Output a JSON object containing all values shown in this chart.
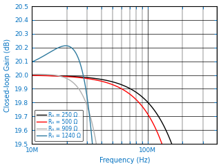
{
  "title": "",
  "xlabel": "Frequency (Hz)",
  "ylabel": "Closed-loop Gain (dB)",
  "xlim": [
    10000000.0,
    400000000.0
  ],
  "ylim": [
    19.5,
    20.5
  ],
  "yticks": [
    19.5,
    19.6,
    19.7,
    19.8,
    19.9,
    20.0,
    20.1,
    20.2,
    20.3,
    20.4,
    20.5
  ],
  "series": [
    {
      "label": "R_F = 250 Ω",
      "color": "#000000",
      "f0": 800000000.0,
      "Q": 0.45,
      "gain_dc": 20.0
    },
    {
      "label": "R_F = 500 Ω",
      "color": "#ff0000",
      "f0": 450000000.0,
      "Q": 0.55,
      "gain_dc": 20.0
    },
    {
      "label": "R_F = 909 Ω",
      "color": "#b0b0b0",
      "f0": 58000000.0,
      "Q": 0.72,
      "gain_dc": 20.0
    },
    {
      "label": "R_F = 1240 Ω",
      "color": "#2e7a9e",
      "f0": 42000000.0,
      "Q": 0.8,
      "gain_dc": 20.0
    }
  ],
  "background_color": "#ffffff",
  "xlabel_color": "#0070c0",
  "ylabel_color": "#0070c0",
  "tick_color": "#0070c0",
  "legend_label_color": "#0070c0"
}
